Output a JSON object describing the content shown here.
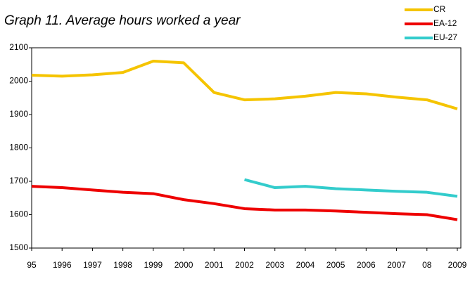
{
  "chart_data": {
    "type": "line",
    "title": "Graph 11. Average hours worked a year",
    "categories": [
      "95",
      "1996",
      "1997",
      "1998",
      "1999",
      "2000",
      "2001",
      "2002",
      "2003",
      "2004",
      "2005",
      "2006",
      "2007",
      "08",
      "2009"
    ],
    "series": [
      {
        "name": "CR",
        "color": "#f5c400",
        "values": [
          2018,
          2015,
          2019,
          2026,
          2060,
          2055,
          1966,
          1944,
          1947,
          1955,
          1966,
          1962,
          1952,
          1944,
          1917
        ]
      },
      {
        "name": "EA-12",
        "color": "#ee0000",
        "values": [
          1685,
          1681,
          1674,
          1667,
          1663,
          1645,
          1633,
          1618,
          1614,
          1614,
          1611,
          1607,
          1603,
          1600,
          1585
        ]
      },
      {
        "name": "EU-27",
        "color": "#33cccc",
        "values": [
          null,
          null,
          null,
          null,
          null,
          null,
          null,
          1705,
          1681,
          1685,
          1678,
          1674,
          1670,
          1667,
          1655
        ]
      }
    ],
    "ylim": [
      1500,
      2100
    ],
    "yticks": [
      1500,
      1600,
      1700,
      1800,
      1900,
      2000,
      2100
    ],
    "grid": false,
    "legend": "top-right"
  }
}
